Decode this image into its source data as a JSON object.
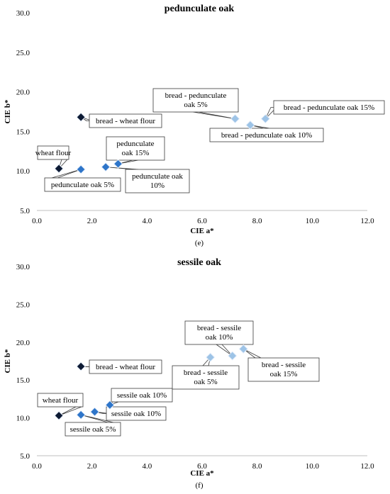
{
  "colors": {
    "wheat_flour": "#0d1a33",
    "bread_wheat_flour": "#0d1a33",
    "flour_blend": "#2e75c9",
    "bread_blend": "#9dc3e6",
    "marker_edge": "#e8f0fb"
  },
  "chart_data": [
    {
      "type": "scatter",
      "title": "pedunculate oak",
      "panel_label": "(e)",
      "xlabel": "CIE a*",
      "ylabel": "CIE b*",
      "xlim": [
        0,
        12
      ],
      "ylim": [
        5,
        30
      ],
      "x_ticks": [
        "0.0",
        "2.0",
        "4.0",
        "6.0",
        "8.0",
        "10.0",
        "12.0"
      ],
      "y_ticks": [
        "5.0",
        "10.0",
        "15.0",
        "20.0",
        "25.0",
        "30.0"
      ],
      "grid": false,
      "points": [
        {
          "label": "wheat flour",
          "x": 0.8,
          "y": 10.3,
          "group": "wheat_flour"
        },
        {
          "label": "bread - wheat flour",
          "x": 1.6,
          "y": 16.8,
          "group": "bread_wheat_flour"
        },
        {
          "label": "pedunculate oak 5%",
          "x": 1.6,
          "y": 10.2,
          "group": "flour_blend"
        },
        {
          "label": "pedunculate oak 10%",
          "x": 2.5,
          "y": 10.5,
          "group": "flour_blend"
        },
        {
          "label": "pedunculate oak 15%",
          "x": 2.95,
          "y": 10.9,
          "group": "flour_blend"
        },
        {
          "label": "bread - pedunculate oak 5%",
          "x": 7.2,
          "y": 16.6,
          "group": "bread_blend"
        },
        {
          "label": "bread - pedunculate oak 10%",
          "x": 7.75,
          "y": 15.8,
          "group": "bread_blend"
        },
        {
          "label": "bread - pedunculate oak 15%",
          "x": 8.3,
          "y": 16.6,
          "group": "bread_blend"
        }
      ]
    },
    {
      "type": "scatter",
      "title": "sessile oak",
      "panel_label": "(f)",
      "xlabel": "CIE a*",
      "ylabel": "CIE b*",
      "xlim": [
        0,
        12
      ],
      "ylim": [
        5,
        30
      ],
      "x_ticks": [
        "0.0",
        "2.0",
        "4.0",
        "6.0",
        "8.0",
        "10.0",
        "12.0"
      ],
      "y_ticks": [
        "5.0",
        "10.0",
        "15.0",
        "20.0",
        "25.0",
        "30.0"
      ],
      "grid": false,
      "points": [
        {
          "label": "wheat flour",
          "x": 0.8,
          "y": 10.3,
          "group": "wheat_flour"
        },
        {
          "label": "bread - wheat flour",
          "x": 1.6,
          "y": 16.8,
          "group": "bread_wheat_flour"
        },
        {
          "label": "sessile oak 5%",
          "x": 1.6,
          "y": 10.4,
          "group": "flour_blend"
        },
        {
          "label": "sessile oak 10%",
          "x": 2.1,
          "y": 10.8,
          "group": "flour_blend"
        },
        {
          "label": "sessile oak 10%",
          "x": 2.65,
          "y": 11.7,
          "group": "flour_blend"
        },
        {
          "label": "bread - sessile oak 5%",
          "x": 6.3,
          "y": 18.0,
          "group": "bread_blend"
        },
        {
          "label": "bread - sessile oak 10%",
          "x": 7.1,
          "y": 18.2,
          "group": "bread_blend"
        },
        {
          "label": "bread - sessile oak 15%",
          "x": 7.5,
          "y": 19.1,
          "group": "bread_blend"
        }
      ]
    }
  ]
}
